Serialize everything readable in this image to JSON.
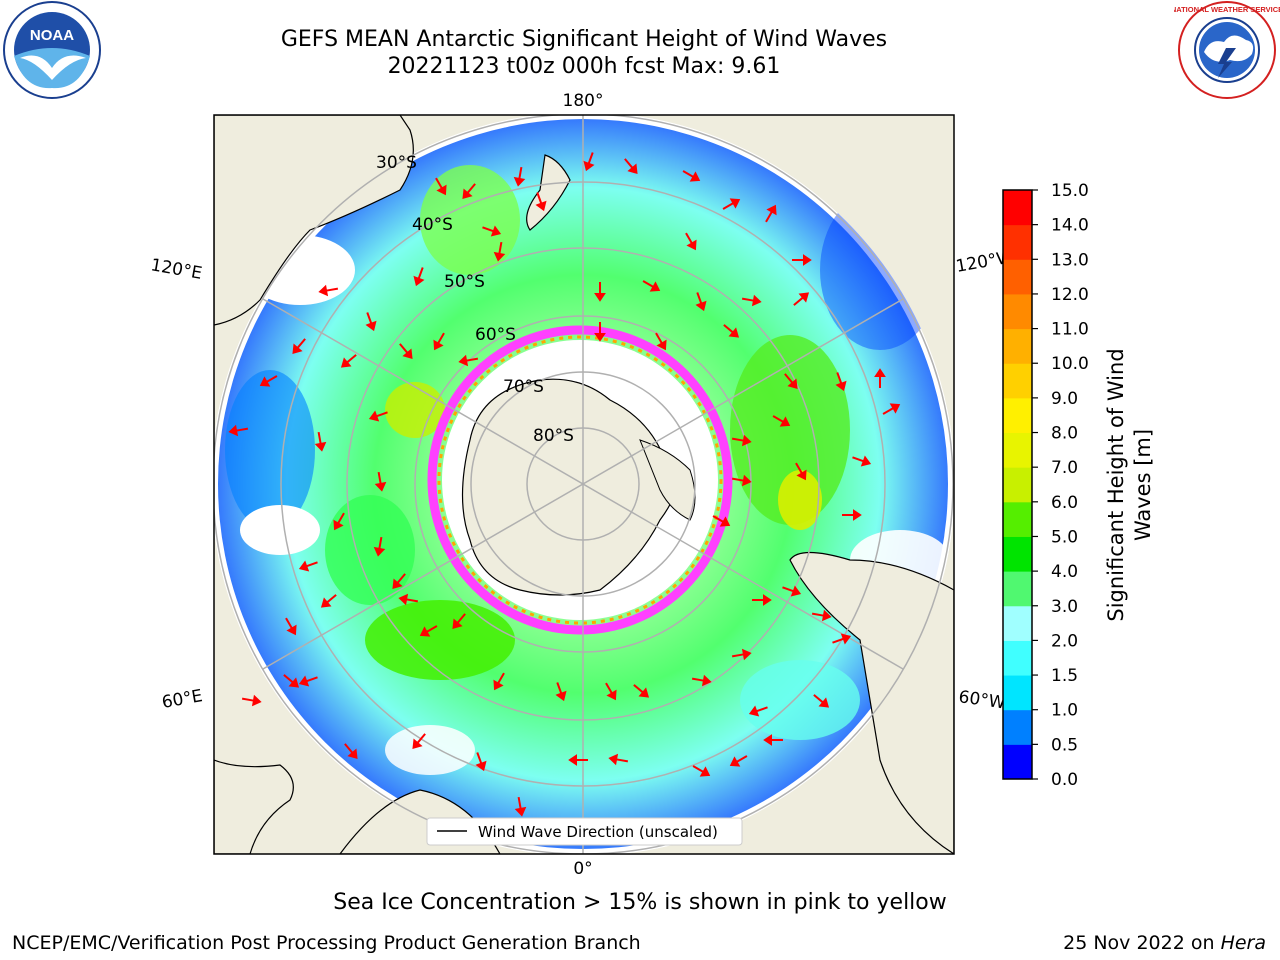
{
  "title": {
    "line1": "GEFS MEAN Antarctic Significant Height of Wind Waves",
    "line2": "20221123 t00z 000h fcst   Max: 9.61"
  },
  "logos": {
    "left": {
      "name": "noaa-logo",
      "text": "NOAA"
    },
    "right": {
      "name": "nws-logo",
      "text": "NATIONAL WEATHER SERVICE"
    }
  },
  "map": {
    "projection": "south-polar-stereographic",
    "longitude_labels": [
      "180°",
      "120°E",
      "120°W",
      "60°E",
      "60°W",
      "0°"
    ],
    "latitude_labels": [
      "30°S",
      "40°S",
      "50°S",
      "60°S",
      "70°S",
      "80°S"
    ],
    "legend_label": "Wind Wave Direction (unscaled)",
    "colors": {
      "land": "#efedde",
      "grid": "#b0b0b0",
      "coast": "#000000",
      "arrows": "#ff0000",
      "ice": "#ff40ff"
    }
  },
  "colorbar": {
    "label_line1": "Significant Height of Wind",
    "label_line2": "Waves [m]",
    "ticks": [
      "0.0",
      "0.5",
      "1.0",
      "1.5",
      "2.0",
      "3.0",
      "4.0",
      "5.0",
      "6.0",
      "7.0",
      "8.0",
      "9.0",
      "10.0",
      "11.0",
      "12.0",
      "13.0",
      "14.0",
      "15.0"
    ],
    "colors": [
      "#0000ff",
      "#0080ff",
      "#00e5ff",
      "#40ffff",
      "#a0ffff",
      "#50f870",
      "#00e400",
      "#55ee00",
      "#c8f000",
      "#e8f400",
      "#fff000",
      "#ffd000",
      "#ffb000",
      "#ff8a00",
      "#ff6000",
      "#ff3000",
      "#ff0000"
    ]
  },
  "footer": {
    "ice_note": "Sea Ice Concentration > 15% is shown in pink to yellow",
    "credit_left": "NCEP/EMC/Verification Post Processing Product Generation Branch",
    "credit_date": "25 Nov 2022 on",
    "credit_host": "Hera"
  }
}
